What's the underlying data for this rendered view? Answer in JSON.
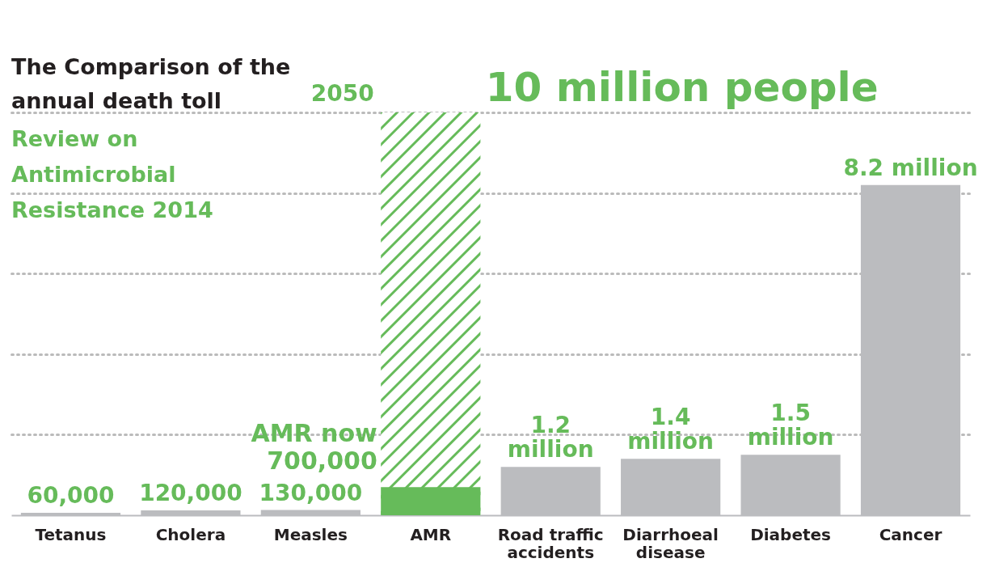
{
  "chart_data": {
    "type": "bar",
    "title": "The Comparison of the annual death toll",
    "subtitle": "Review on Antimicrobial Resistance 2014",
    "categories": [
      "Tetanus",
      "Cholera",
      "Measles",
      "AMR",
      "Road traffic accidents",
      "Diarrhoeal disease",
      "Diabetes",
      "Cancer"
    ],
    "series": [
      {
        "name": "2050",
        "color": "#66bb5a",
        "values": [
          null,
          null,
          null,
          10000000,
          null,
          null,
          null,
          null
        ]
      },
      {
        "color": "#bbbcbf",
        "colors": [
          "#bbbcbf",
          "#bbbcbf",
          "#bbbcbf",
          "#66bb5a",
          "#bbbcbf",
          "#bbbcbf",
          "#bbbcbf",
          "#bbbcbf"
        ],
        "values": [
          60000,
          120000,
          130000,
          700000,
          1200000,
          1400000,
          1500000,
          8200000
        ],
        "value_labels": [
          "60,000",
          "120,000",
          "130,000",
          null,
          "1.2 million",
          "1.4 million",
          "1.5 million",
          "8.2 million"
        ]
      }
    ],
    "annotations": [
      {
        "text": "10 million people",
        "x": "AMR",
        "y": 10000000
      },
      {
        "text": "AMR now 700,000",
        "x": "AMR",
        "y": 700000
      }
    ],
    "yticks": [
      {
        "value": 2000000,
        "label": null
      },
      {
        "value": 4000000,
        "label": null
      },
      {
        "value": 6000000,
        "label": null
      },
      {
        "value": 8000000,
        "label": null
      },
      {
        "value": 10000000,
        "label": null
      }
    ],
    "grid": "y"
  }
}
